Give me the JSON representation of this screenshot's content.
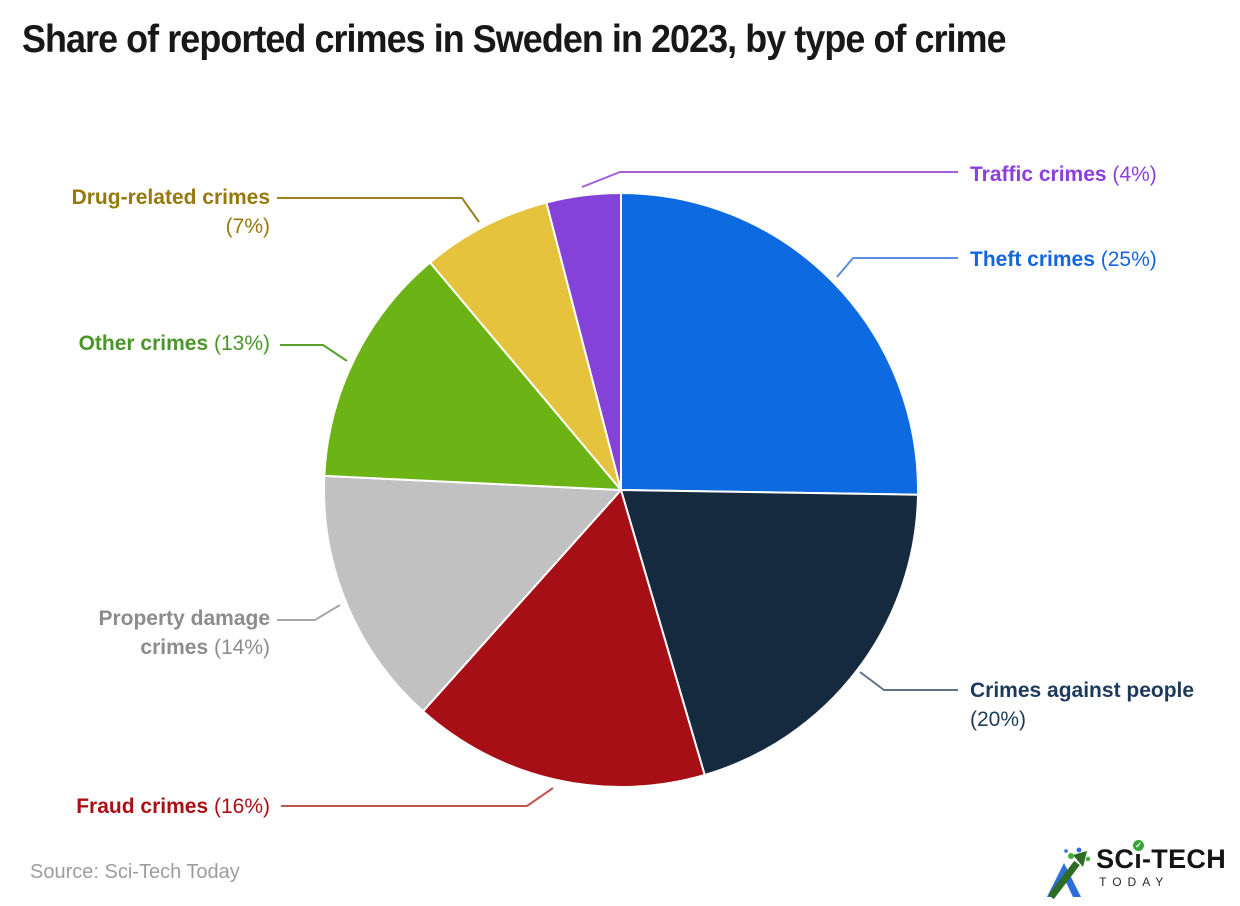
{
  "title": "Share of reported crimes in Sweden in 2023, by type of crime",
  "source": {
    "prefix": "Source:",
    "name": "Sci-Tech Today"
  },
  "logo": {
    "part1": "SC",
    "part_i": "ı",
    "part2": "-TECH",
    "sub": "TODAY",
    "check": "✓"
  },
  "chart_data": {
    "type": "pie",
    "title": "Share of reported crimes in Sweden in 2023, by type of crime",
    "start_angle_deg": 0,
    "direction": "clockwise",
    "label_format": "Name (percent%)",
    "slices": [
      {
        "id": "theft-crimes",
        "label": "Theft crimes",
        "value_pct": 25,
        "color": "#0d6ae1",
        "label_color": "#1565dd",
        "line_color": "#5b8de2"
      },
      {
        "id": "crimes-against-people",
        "label": "Crimes against people",
        "value_pct": 20,
        "color": "#15293f",
        "label_color": "#1d3a5a",
        "line_color": "#5d7189"
      },
      {
        "id": "fraud-crimes",
        "label": "Fraud crimes",
        "value_pct": 16,
        "color": "#a60f16",
        "label_color": "#ab1016",
        "line_color": "#c25552"
      },
      {
        "id": "property-damage-crimes",
        "label": "Property damage crimes",
        "value_pct": 14,
        "color": "#c1c1c2",
        "label_color": "#8c8c8c",
        "line_color": "#a8a8a8"
      },
      {
        "id": "other-crimes",
        "label": "Other crimes",
        "value_pct": 13,
        "color": "#6cb315",
        "label_color": "#4a9629",
        "line_color": "#5aa02b"
      },
      {
        "id": "drug-related-crimes",
        "label": "Drug-related crimes",
        "value_pct": 7,
        "color": "#e5c33d",
        "label_color": "#97790b",
        "line_color": "#9c8020"
      },
      {
        "id": "traffic-crimes",
        "label": "Traffic crimes",
        "value_pct": 4,
        "color": "#8442d8",
        "label_color": "#8d3fdb",
        "line_color": "#a05fd6"
      }
    ]
  }
}
